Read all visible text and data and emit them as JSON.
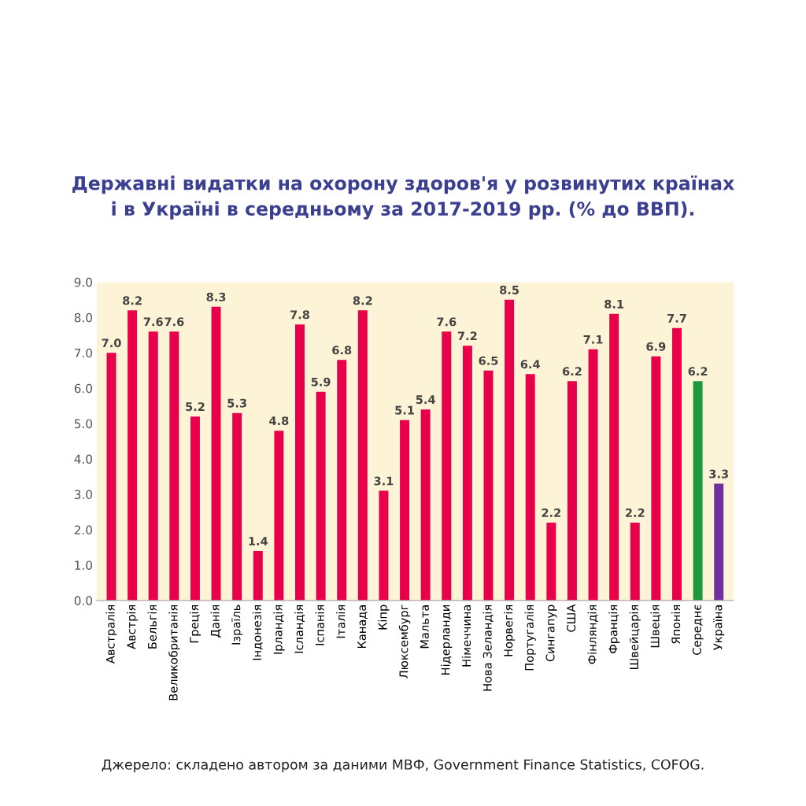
{
  "chart_data": {
    "type": "bar",
    "title": "Державні видатки на охорону здоров'я у розвинутих країнах\nі в Україні в середньому за 2017-2019 рр. (% до ВВП).",
    "categories": [
      "Австралія",
      "Австрія",
      "Бельгія",
      "Великобританія",
      "Греція",
      "Данія",
      "Ізраїль",
      "Індонезія",
      "Ірландія",
      "Ісландія",
      "Іспанія",
      "Італія",
      "Канада",
      "Кіпр",
      "Люксембург",
      "Мальта",
      "Нідерланди",
      "Німеччина",
      "Нова Зеландія",
      "Норвегія",
      "Португалія",
      "Сингапур",
      "США",
      "Фінляндія",
      "Франція",
      "Швейцарія",
      "Швеція",
      "Японія",
      "Середнє",
      "Україна"
    ],
    "values": [
      7.0,
      8.2,
      7.6,
      7.6,
      5.2,
      8.3,
      5.3,
      1.4,
      4.8,
      7.8,
      5.9,
      6.8,
      8.2,
      3.1,
      5.1,
      5.4,
      7.6,
      7.2,
      6.5,
      8.5,
      6.4,
      2.2,
      6.2,
      7.1,
      8.1,
      2.2,
      6.9,
      7.7,
      6.2,
      3.3
    ],
    "value_labels": [
      "7.0",
      "8.2",
      "7.6",
      "7.6",
      "5.2",
      "8.3",
      "5.3",
      "1.4",
      "4.8",
      "7.8",
      "5.9",
      "6.8",
      "8.2",
      "3.1",
      "5.1",
      "5.4",
      "7.6",
      "7.2",
      "6.5",
      "8.5",
      "6.4",
      "2.2",
      "6.2",
      "7.1",
      "8.1",
      "2.2",
      "6.9",
      "7.7",
      "6.2",
      "3.3"
    ],
    "colors": [
      "#e8004a",
      "#e8004a",
      "#e8004a",
      "#e8004a",
      "#e8004a",
      "#e8004a",
      "#e8004a",
      "#e8004a",
      "#e8004a",
      "#e8004a",
      "#e8004a",
      "#e8004a",
      "#e8004a",
      "#e8004a",
      "#e8004a",
      "#e8004a",
      "#e8004a",
      "#e8004a",
      "#e8004a",
      "#e8004a",
      "#e8004a",
      "#e8004a",
      "#e8004a",
      "#e8004a",
      "#e8004a",
      "#e8004a",
      "#e8004a",
      "#e8004a",
      "#1a9a3a",
      "#7030a0"
    ],
    "ylim": [
      0,
      9
    ],
    "yticks": [
      {
        "value": 0,
        "label": "0.0"
      },
      {
        "value": 1,
        "label": "1.0"
      },
      {
        "value": 2,
        "label": "2.0"
      },
      {
        "value": 3,
        "label": "3.0"
      },
      {
        "value": 4,
        "label": "4.0"
      },
      {
        "value": 5,
        "label": "5.0"
      },
      {
        "value": 6,
        "label": "6.0"
      },
      {
        "value": 7,
        "label": "7.0"
      },
      {
        "value": 8,
        "label": "8.0"
      },
      {
        "value": 9,
        "label": "9.0"
      }
    ],
    "grid": false,
    "annotations": [
      "Джерело: складено автором за даними МВФ, Government Finance Statistics, COFOG."
    ]
  }
}
